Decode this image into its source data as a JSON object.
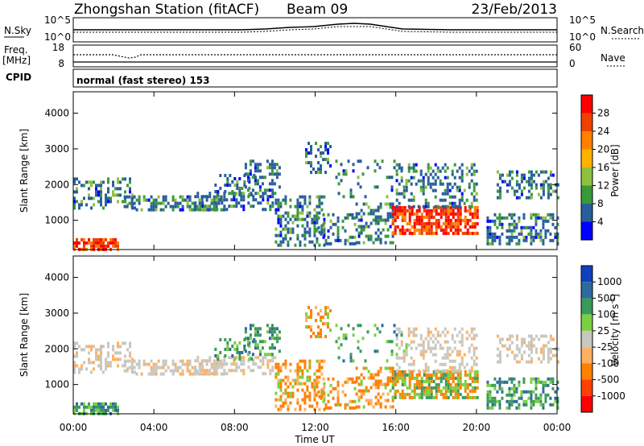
{
  "header": {
    "station": "Zhongshan Station (fitACF)",
    "beam": "Beam 09",
    "date": "23/Feb/2013"
  },
  "sky_panel": {
    "left_label": "N.Sky",
    "right_label": "N.Search",
    "left_ticks": [
      "10^5",
      "10^0"
    ],
    "right_ticks": [
      "10^5",
      "10^0"
    ]
  },
  "freq_panel": {
    "left_label_1": "Freq.",
    "left_label_2": "[MHz]",
    "right_label": "Nave",
    "left_ticks": [
      "18",
      "8"
    ],
    "right_ticks": [
      "60",
      "0"
    ]
  },
  "cpid_panel": {
    "label": "CPID",
    "text": "normal (fast stereo) 153"
  },
  "chart_data": [
    {
      "type": "heatmap",
      "name": "power",
      "ylabel": "Slant Range [km]",
      "yticks": [
        1000,
        2000,
        3000,
        4000
      ],
      "ylim": [
        180,
        4600
      ],
      "xlim_hours": [
        0,
        24
      ],
      "colorbar_label": "Power [dB]",
      "colorbar_ticks": [
        "28",
        "24",
        "20",
        "16",
        "12",
        "8",
        "4"
      ],
      "colors": [
        "#ff0000",
        "#f04000",
        "#ff7f00",
        "#ffb200",
        "#90c040",
        "#3a9a3a",
        "#285f9a",
        "#0000ff"
      ]
    },
    {
      "type": "heatmap",
      "name": "velocity",
      "ylabel": "Slant Range [km]",
      "yticks": [
        1000,
        2000,
        3000,
        4000
      ],
      "ylim": [
        180,
        4600
      ],
      "xlim_hours": [
        0,
        24
      ],
      "colorbar_label": "Velocity [m s",
      "colorbar_label_sup": "-1",
      "colorbar_label_end": "]",
      "colorbar_ticks": [
        "1000",
        "500",
        "100",
        "25",
        "-25",
        "-100",
        "-500",
        "-1000"
      ],
      "colors": [
        "#1040c0",
        "#2e6a9e",
        "#3a9a5a",
        "#7ad040",
        "#c8c8c0",
        "#ffb060",
        "#ff8000",
        "#ff4000",
        "#ff0000"
      ]
    }
  ],
  "x_axis": {
    "ticks": [
      "00:00",
      "04:00",
      "08:00",
      "12:00",
      "16:00",
      "20:00",
      "00:00"
    ],
    "label": "Time UT"
  },
  "colors": {
    "ground_scatter": "#c8c8c0",
    "missing": "#ffffff"
  }
}
